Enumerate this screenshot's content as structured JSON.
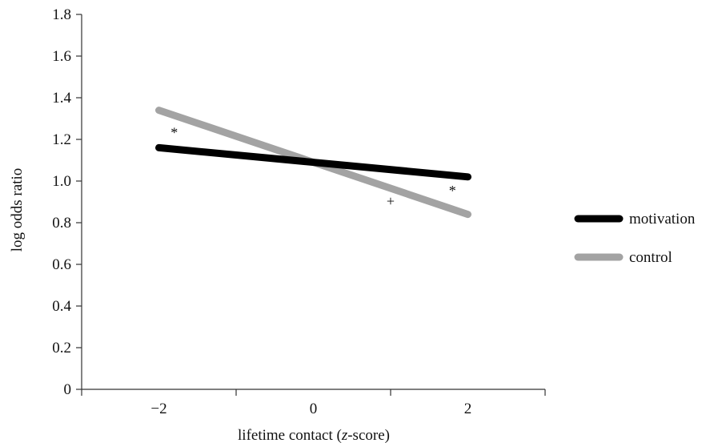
{
  "chart_data": {
    "type": "line",
    "xlabel_pre": "lifetime contact (",
    "xlabel_var": "z",
    "xlabel_post": "-score)",
    "ylabel": "log odds ratio",
    "ylim": [
      0,
      1.8
    ],
    "xlim": [
      -3,
      3
    ],
    "y_ticks": [
      {
        "value": 0,
        "label": "0"
      },
      {
        "value": 0.2,
        "label": "0.2"
      },
      {
        "value": 0.4,
        "label": "0.4"
      },
      {
        "value": 0.6,
        "label": "0.6"
      },
      {
        "value": 0.8,
        "label": "0.8"
      },
      {
        "value": 1.0,
        "label": "1.0"
      },
      {
        "value": 1.2,
        "label": "1.2"
      },
      {
        "value": 1.4,
        "label": "1.4"
      },
      {
        "value": 1.6,
        "label": "1.6"
      },
      {
        "value": 1.8,
        "label": "1.8"
      }
    ],
    "x_ticks": [
      {
        "value": -2,
        "label": "−2"
      },
      {
        "value": 0,
        "label": "0"
      },
      {
        "value": 2,
        "label": "2"
      }
    ],
    "x_minor_ticks": [
      -3,
      -1,
      1,
      3
    ],
    "series": [
      {
        "name": "motivation",
        "color": "#000000",
        "x": [
          -2,
          2
        ],
        "y": [
          1.16,
          1.02
        ]
      },
      {
        "name": "control",
        "color": "#a3a3a3",
        "x": [
          -2,
          2
        ],
        "y": [
          1.34,
          0.84
        ]
      }
    ],
    "annotations": [
      {
        "text": "*",
        "x": -1.8,
        "y": 1.21
      },
      {
        "text": "+",
        "x": 1.0,
        "y": 0.88
      },
      {
        "text": "*",
        "x": 1.8,
        "y": 0.93
      }
    ],
    "legend_position": "right"
  }
}
